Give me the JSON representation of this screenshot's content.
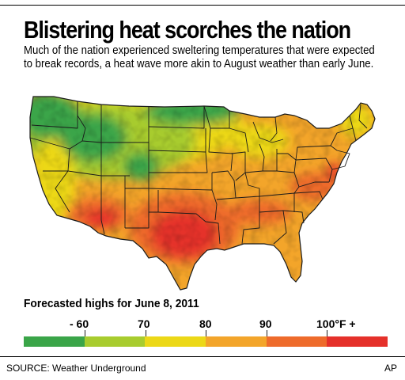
{
  "headline": "Blistering heat scorches the nation",
  "dek": "Much of the nation experienced sweltering temperatures that were expected to break records, a heat wave more akin to August weather than early June.",
  "map": {
    "colors": {
      "band_lt60": "#3aa548",
      "band_60_70": "#a8cc2e",
      "band_70_80": "#ecd817",
      "band_80_90": "#f3a52a",
      "band_90_100": "#ee6b2b",
      "band_100plus": "#e5302a",
      "borders": "#1a1a1a"
    }
  },
  "legend": {
    "title": "Forecasted highs for June 8, 2011",
    "labels": [
      "- 60",
      "70",
      "80",
      "90",
      "100°F +"
    ],
    "colors": [
      "#3aa548",
      "#a8cc2e",
      "#ecd817",
      "#f3a52a",
      "#ee6b2b",
      "#e5302a"
    ]
  },
  "footer": {
    "source": "SOURCE: Weather Underground",
    "credit": "AP"
  }
}
